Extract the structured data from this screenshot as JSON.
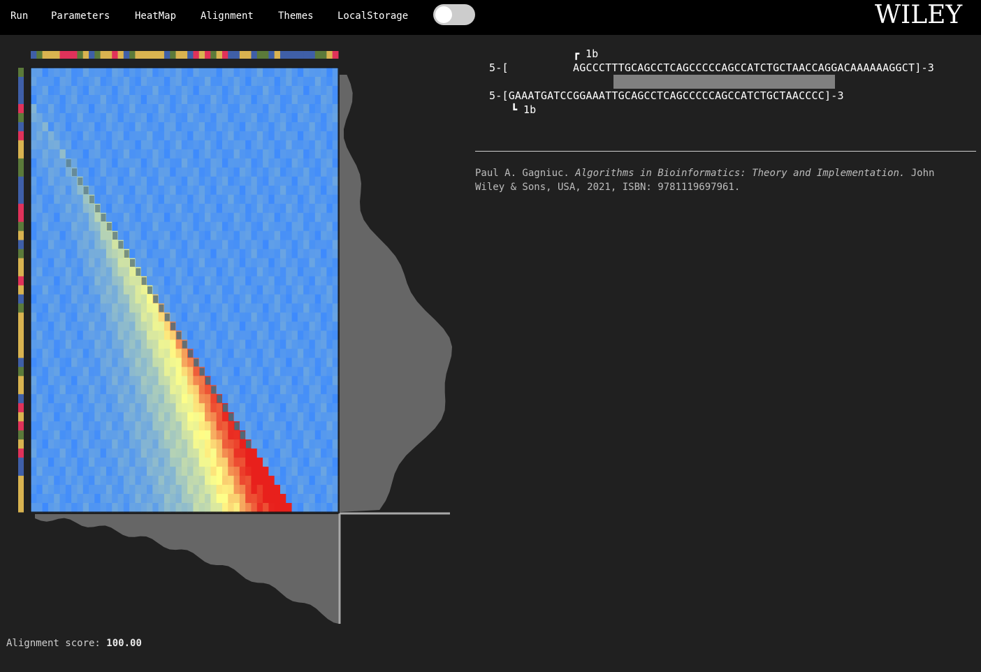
{
  "menu": {
    "run": "Run",
    "parameters": "Parameters",
    "heatmap": "HeatMap",
    "alignment": "Alignment",
    "themes": "Themes",
    "local_storage": "LocalStorage",
    "theme_toggle_on": false
  },
  "brand": {
    "logo": "WILEY"
  },
  "alignment": {
    "top_marker": "┏ 1b",
    "top_line": "5-[          AGCCCTTTGCAGCCTCAGCCCCCAGCCATCTGCTAACCAGGACAAAAAAGGCT]-3",
    "bottom_line": "5-[GAAATGATCCGGAAATTGCAGCCTCAGCCCCCAGCCATCTGCTAACCCC]-3",
    "bottom_marker": "┗ 1b",
    "seq_horizontal": "AGCCCTTTGCAGCCTCAGCCCCCAGCCATCTGCTAACCAGGACAAAAAAGGCT",
    "seq_vertical": "GAAATGATCCGGAAATTGCAGCCTCAGCCCCCAGCCATCTGCTAACCCC",
    "match_start_index": 6,
    "match_length": 32
  },
  "citation": {
    "author": "Paul A. Gagniuc.",
    "title": "Algorithms in Bioinformatics: Theory and Implementation.",
    "rest": "John Wiley & Sons, USA, 2021, ISBN: 9781119697961."
  },
  "score": {
    "label": "Alignment score:",
    "value": "100.00"
  },
  "colors": {
    "A": "#3f5fa8",
    "C": "#d9b350",
    "G": "#5b7a3a",
    "T": "#e0325a",
    "heat_low": "#3a88ff",
    "heat_mid": "#ffff88",
    "heat_high": "#e8201c",
    "diagonal": "#4a6a7a",
    "profile": "#666666"
  }
}
